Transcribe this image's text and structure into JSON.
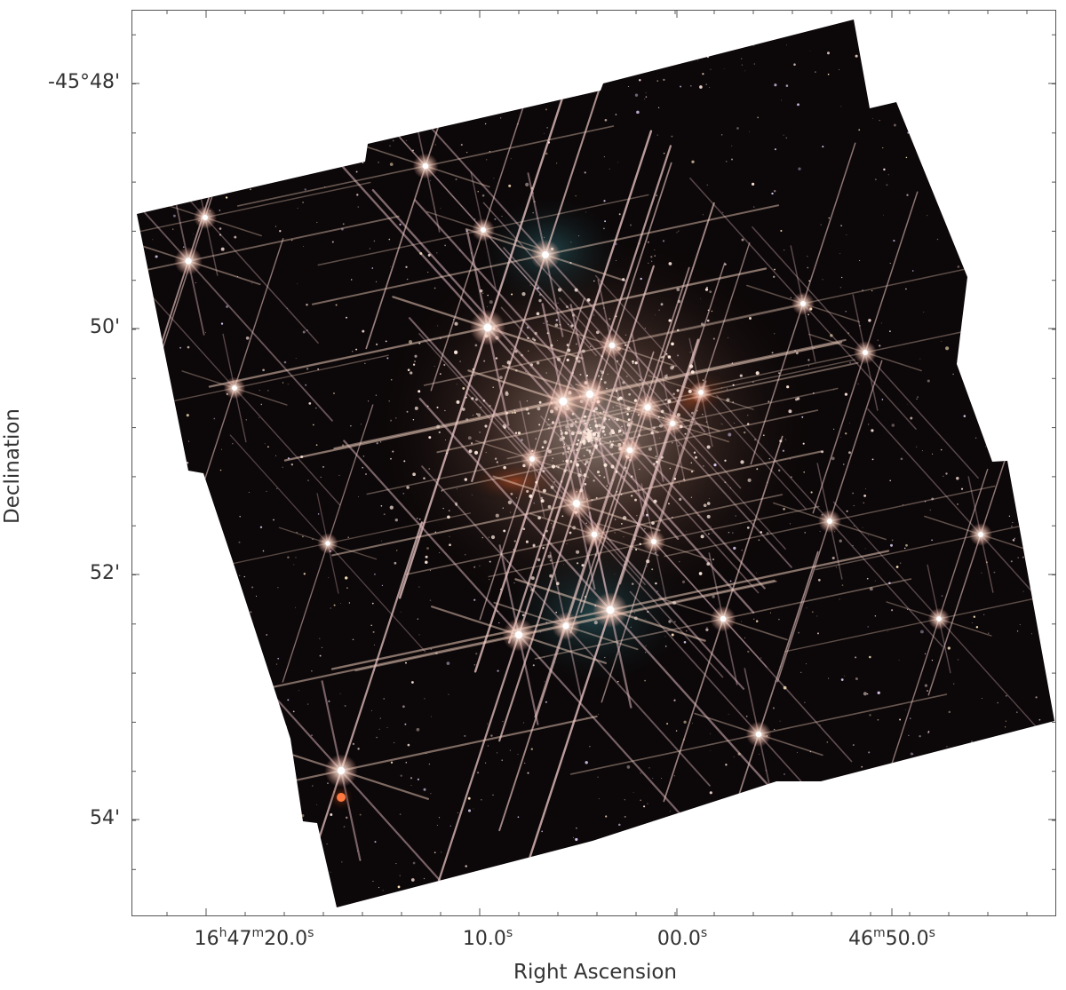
{
  "axes": {
    "xlabel": "Right Ascension",
    "ylabel": "Declination",
    "y_ticks": [
      "-45°48'",
      "50'",
      "52'",
      "54'"
    ],
    "x_ticks": [
      {
        "pre": "16",
        "h": "h",
        "mid1": "47",
        "m": "m",
        "sec": "20.0",
        "s": "s"
      },
      {
        "pre": "",
        "h": "",
        "mid1": "",
        "m": "",
        "sec": "10.0",
        "s": "s"
      },
      {
        "pre": "",
        "h": "",
        "mid1": "",
        "m": "",
        "sec": "00.0",
        "s": "s"
      },
      {
        "pre": "",
        "h": "",
        "mid1": "46",
        "m": "m",
        "sec": "50.0",
        "s": "s"
      }
    ]
  },
  "colors": {
    "background_sky": "#0c0708",
    "star_core": "#fff3ea",
    "star_glow": "#f0b8a8",
    "nebula_orange": "#c0461c",
    "nebula_teal": "#2f6f78"
  }
}
